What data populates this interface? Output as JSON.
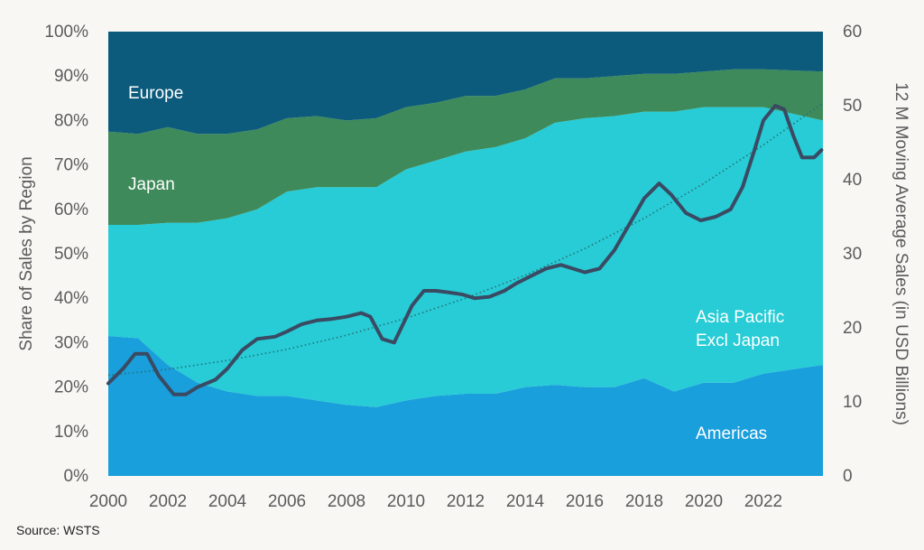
{
  "chart_data": {
    "type": "area",
    "stacked_percent": true,
    "x": [
      2000,
      2001,
      2002,
      2003,
      2004,
      2005,
      2006,
      2007,
      2008,
      2009,
      2010,
      2011,
      2012,
      2013,
      2014,
      2015,
      2016,
      2017,
      2018,
      2019,
      2020,
      2021,
      2022,
      2023
    ],
    "xticks": [
      "2000",
      "2002",
      "2004",
      "2006",
      "2008",
      "2010",
      "2012",
      "2014",
      "2016",
      "2018",
      "2020",
      "2022"
    ],
    "y_left": {
      "label": "Share of Sales by Region",
      "range": [
        0,
        100
      ],
      "ticks": [
        "0%",
        "10%",
        "20%",
        "30%",
        "40%",
        "50%",
        "60%",
        "70%",
        "80%",
        "90%",
        "100%"
      ]
    },
    "y_right": {
      "label": "12 M Moving Average Sales (in USD Billions)",
      "range": [
        0,
        60
      ],
      "ticks": [
        "0",
        "10",
        "20",
        "30",
        "40",
        "50",
        "60"
      ]
    },
    "series": [
      {
        "name": "Americas",
        "values": [
          31.5,
          31,
          25,
          21,
          19,
          18,
          18,
          17,
          16,
          15.5,
          17,
          18,
          18.5,
          18.5,
          20,
          20.5,
          20,
          20,
          22,
          19,
          21,
          21,
          23,
          25
        ]
      },
      {
        "name": "Asia Pacific Excl Japan",
        "values": [
          25,
          25.5,
          32,
          36,
          39,
          42,
          46,
          48,
          49,
          49.5,
          52,
          53,
          54.5,
          55.5,
          56,
          59,
          60.5,
          61,
          60,
          63,
          62,
          62,
          60,
          55
        ]
      },
      {
        "name": "Japan",
        "values": [
          21,
          20.5,
          21.5,
          20,
          19,
          18,
          16.5,
          16,
          15,
          15.5,
          14,
          13,
          12.5,
          11.5,
          11,
          10,
          9,
          9,
          8.5,
          8.5,
          8,
          8.5,
          8.5,
          11
        ]
      },
      {
        "name": "Europe",
        "values": [
          22.5,
          23,
          21.5,
          23,
          23,
          22,
          19.5,
          19,
          20,
          19.5,
          17,
          16,
          14.5,
          14.5,
          13,
          10.5,
          10.5,
          10,
          9.5,
          9.5,
          9,
          8.5,
          8.5,
          9
        ]
      }
    ],
    "line": {
      "name": "12 M Moving Average Sales",
      "x": [
        2000,
        2000.5,
        2000.9,
        2001.3,
        2001.7,
        2002.2,
        2002.6,
        2003.0,
        2003.6,
        2004.0,
        2004.5,
        2005.0,
        2005.6,
        2006.0,
        2006.5,
        2007.0,
        2007.5,
        2008.0,
        2008.5,
        2008.8,
        2009.2,
        2009.6,
        2009.9,
        2010.2,
        2010.6,
        2011.0,
        2011.4,
        2011.9,
        2012.3,
        2012.8,
        2013.3,
        2013.7,
        2014.2,
        2014.7,
        2015.2,
        2015.6,
        2016.0,
        2016.5,
        2017.0,
        2017.5,
        2018.0,
        2018.5,
        2018.9,
        2019.4,
        2019.9,
        2020.4,
        2020.9,
        2021.3,
        2021.7,
        2022.0,
        2022.4,
        2022.7,
        2023.0,
        2023.3,
        2023.7,
        2023.95
      ],
      "values": [
        12.5,
        14.5,
        16.5,
        16.5,
        13.5,
        11,
        11,
        12,
        13,
        14.5,
        17,
        18.5,
        18.8,
        19.5,
        20.5,
        21,
        21.2,
        21.5,
        22,
        21.5,
        18.5,
        18,
        20.5,
        23,
        25,
        25,
        24.8,
        24.5,
        24,
        24.2,
        25,
        26,
        27,
        28,
        28.5,
        28,
        27.5,
        28,
        30.5,
        34,
        37.5,
        39.5,
        38,
        35.5,
        34.5,
        35,
        36,
        39,
        44,
        48,
        50,
        49.5,
        46,
        43,
        43,
        44
      ]
    },
    "trendline": {
      "name": "trend",
      "style": "dotted",
      "x": [
        2000,
        2002,
        2004,
        2006,
        2008,
        2010,
        2012,
        2014,
        2016,
        2018,
        2020,
        2022,
        2023.95
      ],
      "values": [
        13.6,
        14.4,
        15.6,
        17.1,
        19.0,
        21.3,
        24.0,
        27.1,
        30.7,
        34.8,
        39.5,
        44.7,
        50.2
      ]
    },
    "labels": {
      "europe": "Europe",
      "japan": "Japan",
      "apac_line1": "Asia Pacific",
      "apac_line2": "Excl Japan",
      "americas": "Americas"
    },
    "colors": {
      "Americas": "#199fdc",
      "Asia Pacific Excl Japan": "#27ccd6",
      "Japan": "#3e8a5a",
      "Europe": "#0c5b7c",
      "line": "#3a4a62",
      "trend": "#2a6f73"
    },
    "grid": false,
    "legend": "none"
  },
  "source": "Source: WSTS"
}
